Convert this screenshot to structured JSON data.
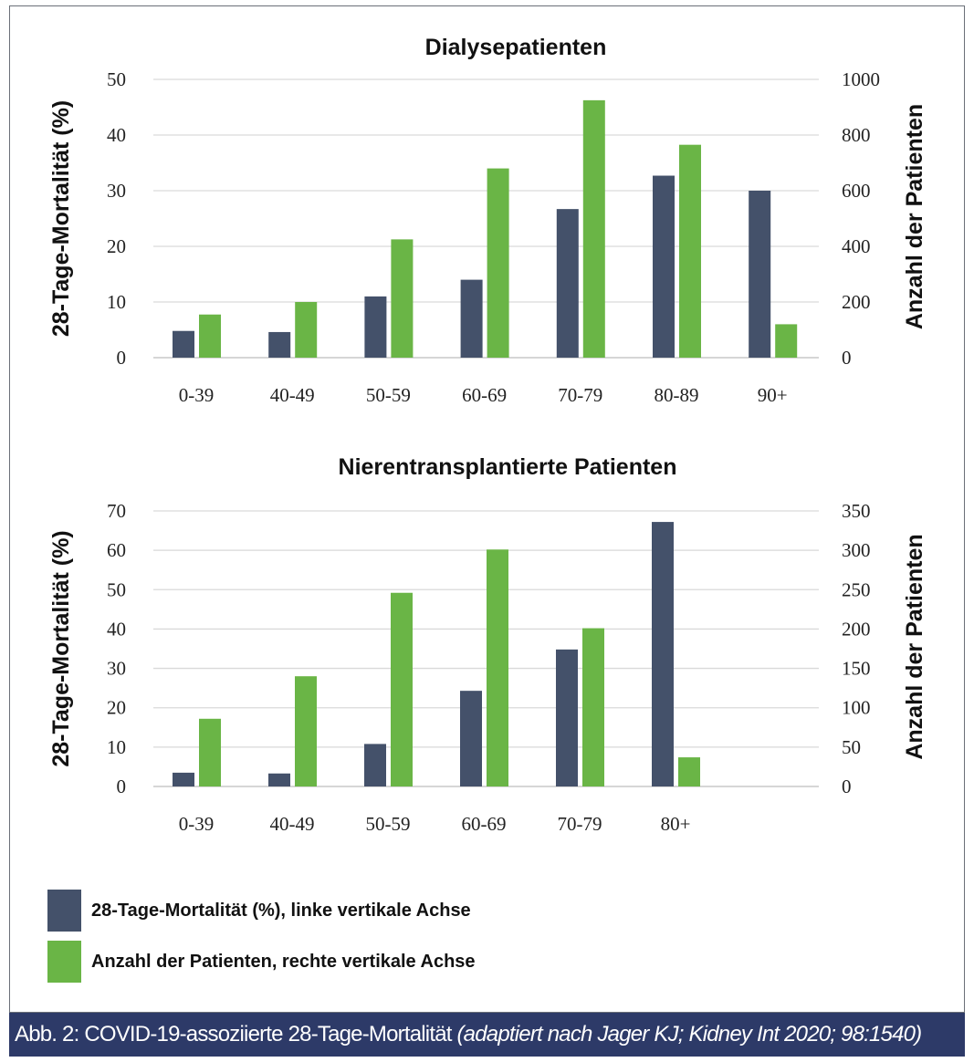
{
  "colors": {
    "mortality": "#44516a",
    "patients": "#6ab546",
    "grid": "#d9d9d9",
    "caption_bg": "#2d3a68"
  },
  "chart_data": [
    {
      "type": "bar",
      "title": "Dialysepatienten",
      "categories": [
        "0-39",
        "40-49",
        "50-59",
        "60-69",
        "70-79",
        "80-89",
        "90+"
      ],
      "ylabel": "28-Tage-Mortalität (%)",
      "y2label": "Anzahl der Patienten",
      "ylim": [
        0,
        50
      ],
      "y2lim": [
        0,
        1000
      ],
      "yticks": [
        "0",
        "10",
        "20",
        "30",
        "40",
        "50"
      ],
      "y2ticks": [
        "0",
        "200",
        "400",
        "600",
        "800",
        "1000"
      ],
      "grid": true,
      "series": [
        {
          "name": "28-Tage-Mortalität (%), linke vertikale Achse",
          "axis": "left",
          "values": [
            4.8,
            4.6,
            11,
            14,
            26.7,
            32.7,
            30
          ]
        },
        {
          "name": "Anzahl der Patienten, rechte vertikale Achse",
          "axis": "right",
          "values": [
            155,
            200,
            425,
            680,
            925,
            765,
            120
          ]
        }
      ]
    },
    {
      "type": "bar",
      "title": "Nierentransplantierte Patienten",
      "categories": [
        "0-39",
        "40-49",
        "50-59",
        "60-69",
        "70-79",
        "80+"
      ],
      "ylabel": "28-Tage-Mortalität (%)",
      "y2label": "Anzahl der Patienten",
      "ylim": [
        0,
        70
      ],
      "y2lim": [
        0,
        350
      ],
      "yticks": [
        "0",
        "10",
        "20",
        "30",
        "40",
        "50",
        "60",
        "70"
      ],
      "y2ticks": [
        "0",
        "50",
        "100",
        "150",
        "200",
        "250",
        "300",
        "350"
      ],
      "grid": true,
      "series": [
        {
          "name": "28-Tage-Mortalität (%), linke vertikale Achse",
          "axis": "left",
          "values": [
            3.5,
            3.3,
            10.8,
            24.3,
            34.8,
            67.2
          ]
        },
        {
          "name": "Anzahl der Patienten, rechte vertikale Achse",
          "axis": "right",
          "values": [
            86,
            140,
            246,
            301,
            201,
            37
          ]
        }
      ]
    }
  ],
  "legend": {
    "items": [
      {
        "label": "28-Tage-Mortalität (%), linke vertikale Achse"
      },
      {
        "label": "Anzahl der Patienten, rechte vertikale Achse"
      }
    ]
  },
  "caption": {
    "main": "Abb. 2: COVID-19-assoziierte 28-Tage-Mortalität ",
    "citation": "(adaptiert nach Jager KJ; Kidney Int 2020; 98:1540)"
  }
}
